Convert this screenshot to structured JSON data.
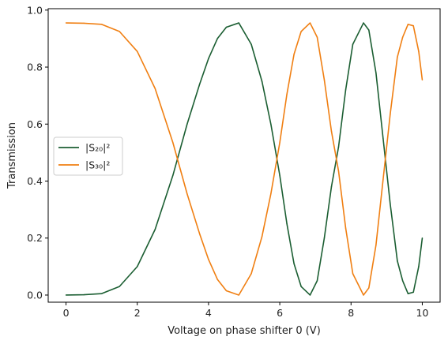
{
  "chart_data": {
    "type": "line",
    "title": "",
    "xlabel": "Voltage on phase shifter 0 (V)",
    "ylabel": "Transmission",
    "xlim": [
      -0.5,
      10.5
    ],
    "ylim": [
      -0.025,
      1.005
    ],
    "xticks": [
      0,
      2,
      4,
      6,
      8,
      10
    ],
    "xtick_labels": [
      "0",
      "2",
      "4",
      "6",
      "8",
      "10"
    ],
    "yticks": [
      0.0,
      0.2,
      0.4,
      0.6,
      0.8,
      1.0
    ],
    "ytick_labels": [
      "0.0",
      "0.2",
      "0.4",
      "0.6",
      "0.8",
      "1.0"
    ],
    "grid": false,
    "legend": {
      "placement": "center-left"
    },
    "x": [
      0,
      0.5,
      1,
      1.5,
      2,
      2.5,
      3,
      3.4,
      3.75,
      4,
      4.25,
      4.5,
      4.85,
      5.2,
      5.5,
      5.75,
      6,
      6.2,
      6.4,
      6.6,
      6.85,
      7.05,
      7.25,
      7.45,
      7.65,
      7.85,
      8.05,
      8.35,
      8.5,
      8.7,
      8.9,
      9.1,
      9.3,
      9.45,
      9.6,
      9.75,
      9.9,
      10
    ],
    "series": [
      {
        "name": "|S₂₀|²",
        "color": "#1b5e32",
        "values": [
          0.0,
          0.001,
          0.005,
          0.03,
          0.1,
          0.23,
          0.42,
          0.6,
          0.74,
          0.83,
          0.9,
          0.94,
          0.955,
          0.88,
          0.75,
          0.6,
          0.42,
          0.25,
          0.11,
          0.03,
          0.0,
          0.05,
          0.2,
          0.38,
          0.52,
          0.72,
          0.88,
          0.955,
          0.93,
          0.78,
          0.55,
          0.32,
          0.12,
          0.05,
          0.005,
          0.01,
          0.1,
          0.2
        ]
      },
      {
        "name": "|S₃₀|²",
        "color": "#f07f12",
        "values": [
          0.955,
          0.954,
          0.95,
          0.925,
          0.855,
          0.725,
          0.535,
          0.355,
          0.215,
          0.125,
          0.055,
          0.015,
          0.0,
          0.075,
          0.205,
          0.355,
          0.535,
          0.705,
          0.845,
          0.925,
          0.955,
          0.905,
          0.755,
          0.575,
          0.435,
          0.235,
          0.075,
          0.0,
          0.025,
          0.175,
          0.405,
          0.635,
          0.835,
          0.905,
          0.95,
          0.945,
          0.855,
          0.755
        ]
      }
    ]
  }
}
